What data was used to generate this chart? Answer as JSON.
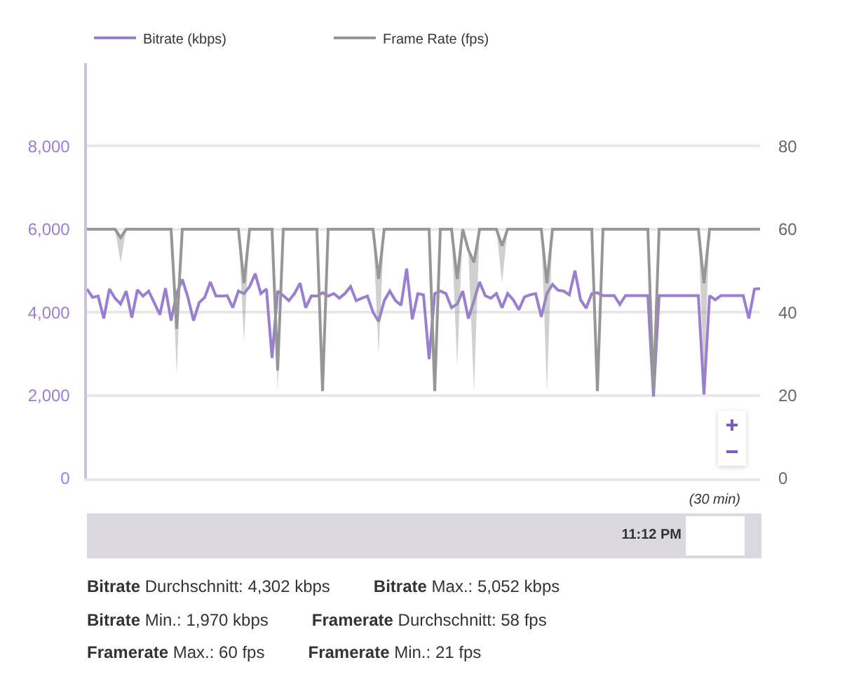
{
  "chart_data": {
    "type": "line",
    "categories": [
      null,
      null,
      null,
      null,
      null,
      null,
      null,
      null,
      null,
      null,
      null,
      null,
      null,
      null,
      null,
      null,
      null,
      null,
      null,
      null,
      null,
      null,
      null,
      null,
      null,
      null,
      null,
      null,
      null,
      null,
      null,
      null,
      null,
      null,
      null,
      null,
      null,
      null,
      null,
      null,
      null,
      null,
      null,
      null,
      null,
      null,
      null,
      null,
      null,
      null,
      null,
      null,
      null,
      null,
      null,
      null,
      null,
      null,
      null,
      null,
      null,
      null,
      null,
      null,
      null,
      null,
      null,
      null,
      null,
      null,
      null,
      null,
      null,
      null,
      null,
      null,
      null,
      null,
      null,
      null,
      null,
      null,
      null,
      null,
      null,
      null,
      null,
      null,
      null,
      null,
      null,
      null,
      null,
      null,
      null,
      null,
      null,
      null,
      null,
      null,
      null,
      null,
      null,
      null,
      null,
      null,
      null,
      null,
      null,
      null,
      null,
      null,
      null,
      null,
      null,
      null,
      null,
      null,
      null,
      null,
      null
    ],
    "series": [
      {
        "name": "Bitrate (kbps)",
        "color": "#9a7fd1",
        "values": [
          4560,
          4360,
          4390,
          3850,
          4560,
          4340,
          4200,
          4510,
          3870,
          4540,
          4390,
          4510,
          4230,
          3940,
          4580,
          3800,
          4450,
          4790,
          4360,
          3800,
          4230,
          4360,
          4730,
          4390,
          4390,
          4400,
          4110,
          4510,
          4450,
          4620,
          4930,
          4450,
          4560,
          2900,
          4510,
          4400,
          4280,
          4450,
          4700,
          4110,
          4390,
          4390,
          4470,
          4390,
          4450,
          4340,
          4450,
          4620,
          4280,
          4340,
          4390,
          4000,
          3780,
          4280,
          4510,
          4280,
          4170,
          5050,
          3830,
          4450,
          4420,
          2870,
          4450,
          4510,
          4450,
          4110,
          4200,
          4510,
          3850,
          4280,
          4730,
          4400,
          4340,
          4450,
          4110,
          4450,
          4300,
          4060,
          4370,
          4420,
          4450,
          3890,
          4450,
          4670,
          4530,
          4510,
          4420,
          5000,
          4300,
          4100,
          4450,
          4470,
          4400,
          4400,
          4400,
          4190,
          4400,
          4400,
          4400,
          4400,
          4400,
          1970,
          4400,
          4400,
          4400,
          4400,
          4400,
          4400,
          4400,
          4400,
          2020,
          4400,
          4300,
          4400,
          4400,
          4400,
          4400,
          4400,
          3850,
          4560,
          4570
        ]
      },
      {
        "name": "Frame Rate (fps)",
        "color": "#969696",
        "axis": "y2",
        "values": [
          60,
          60,
          60,
          60,
          60,
          60,
          58,
          60,
          60,
          60,
          60,
          60,
          60,
          60,
          60,
          60,
          36,
          60,
          60,
          60,
          60,
          60,
          60,
          60,
          60,
          60,
          60,
          60,
          47,
          60,
          60,
          60,
          60,
          60,
          26,
          60,
          60,
          60,
          60,
          60,
          60,
          60,
          21,
          60,
          60,
          60,
          60,
          60,
          60,
          60,
          60,
          60,
          48,
          60,
          60,
          60,
          60,
          60,
          60,
          60,
          60,
          60,
          21,
          60,
          60,
          60,
          48,
          60,
          55,
          52,
          60,
          60,
          60,
          60,
          56,
          60,
          60,
          60,
          60,
          60,
          60,
          60,
          47,
          60,
          60,
          60,
          60,
          60,
          60,
          60,
          60,
          21,
          60,
          60,
          60,
          60,
          60,
          60,
          60,
          60,
          60,
          21,
          60,
          60,
          60,
          60,
          60,
          60,
          60,
          60,
          47,
          60,
          60,
          60,
          60,
          60,
          60,
          60,
          60,
          60,
          60
        ],
        "lower": [
          60,
          60,
          60,
          60,
          60,
          60,
          52,
          60,
          60,
          60,
          60,
          60,
          60,
          60,
          60,
          60,
          25,
          60,
          60,
          60,
          60,
          60,
          60,
          60,
          60,
          60,
          60,
          60,
          33,
          60,
          60,
          60,
          60,
          60,
          21,
          60,
          60,
          60,
          60,
          60,
          60,
          60,
          21,
          60,
          60,
          60,
          60,
          60,
          60,
          60,
          60,
          60,
          30,
          60,
          60,
          60,
          60,
          60,
          60,
          60,
          60,
          60,
          21,
          60,
          60,
          60,
          27,
          60,
          55,
          21,
          60,
          60,
          60,
          60,
          47,
          60,
          60,
          60,
          60,
          60,
          60,
          60,
          21,
          60,
          60,
          60,
          60,
          60,
          60,
          60,
          60,
          21,
          60,
          60,
          60,
          60,
          60,
          60,
          60,
          60,
          60,
          21,
          60,
          60,
          60,
          60,
          60,
          60,
          60,
          60,
          23,
          60,
          60,
          60,
          60,
          60,
          60,
          60,
          60,
          60,
          60
        ],
        "upper": [
          60,
          60,
          60,
          60,
          60,
          60,
          58,
          60,
          60,
          60,
          60,
          60,
          60,
          60,
          60,
          60,
          36,
          60,
          60,
          60,
          60,
          60,
          60,
          60,
          60,
          60,
          60,
          60,
          47,
          60,
          60,
          60,
          60,
          60,
          26,
          60,
          60,
          60,
          60,
          60,
          60,
          60,
          21,
          60,
          60,
          60,
          60,
          60,
          60,
          60,
          60,
          60,
          48,
          60,
          60,
          60,
          60,
          60,
          60,
          60,
          60,
          60,
          21,
          60,
          60,
          60,
          48,
          60,
          55,
          52,
          60,
          60,
          60,
          60,
          56,
          60,
          60,
          60,
          60,
          60,
          60,
          60,
          47,
          60,
          60,
          60,
          60,
          60,
          60,
          60,
          60,
          21,
          60,
          60,
          60,
          60,
          60,
          60,
          60,
          60,
          60,
          21,
          60,
          60,
          60,
          60,
          60,
          60,
          60,
          60,
          47,
          60,
          60,
          60,
          60,
          60,
          60,
          60,
          60,
          60,
          60
        ]
      }
    ],
    "ylim": [
      0,
      10000
    ],
    "yticks": [
      0,
      {
        "value": 2000,
        "label": "2,000"
      },
      {
        "value": 4000,
        "label": "4,000"
      },
      {
        "value": 6000,
        "label": "6,000"
      },
      {
        "value": 8000,
        "label": "8,000"
      }
    ],
    "y2lim": [
      0,
      100
    ],
    "y2ticks": [
      0,
      20,
      40,
      60,
      80
    ],
    "grid": "y",
    "legend": "top left",
    "annotations": [
      "(30 min)",
      "11:12 PM",
      "Bitrate Durchschnitt: 4,302 kbps",
      "Bitrate Max.: 5,052 kbps",
      "Bitrate Min.: 1,970 kbps",
      "Framerate Durchschnitt: 58 fps",
      "Framerate Max.: 60 fps",
      "Framerate Min.: 21 fps"
    ]
  }
}
